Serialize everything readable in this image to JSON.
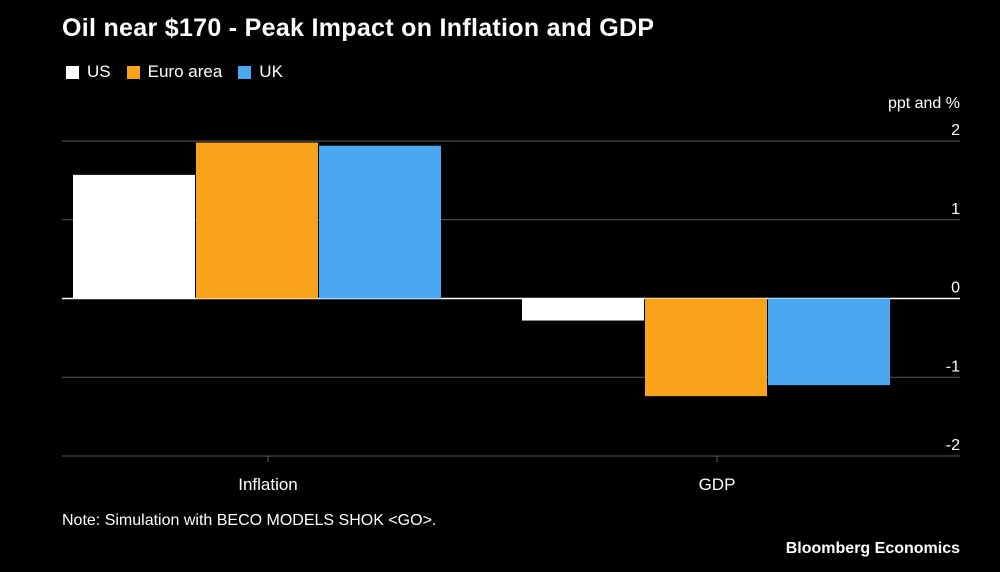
{
  "title": "Oil near $170 - Peak Impact on Inflation and GDP",
  "unit_label": "ppt and %",
  "note": "Note: Simulation with BECO MODELS SHOK <GO>.",
  "source": "Bloomberg Economics",
  "colors": {
    "background": "#000000",
    "grid": "#5a5a5a",
    "axis_text": "#ffffff"
  },
  "chart_data": {
    "type": "bar",
    "categories": [
      "Inflation",
      "GDP"
    ],
    "series": [
      {
        "name": "US",
        "color": "#ffffff",
        "values": [
          1.57,
          -0.28
        ]
      },
      {
        "name": "Euro area",
        "color": "#f9a21c",
        "values": [
          1.98,
          -1.24
        ]
      },
      {
        "name": "UK",
        "color": "#4aa8f0",
        "values": [
          1.94,
          -1.1
        ]
      }
    ],
    "ylim": [
      -2,
      2
    ],
    "yticks": [
      "2",
      "1",
      "0",
      "-1",
      "-2"
    ],
    "ytick_values": [
      2,
      1,
      0,
      -1,
      -2
    ],
    "ylabel": "ppt and %",
    "xlabel": "",
    "legend": "top-left",
    "grid": true
  }
}
